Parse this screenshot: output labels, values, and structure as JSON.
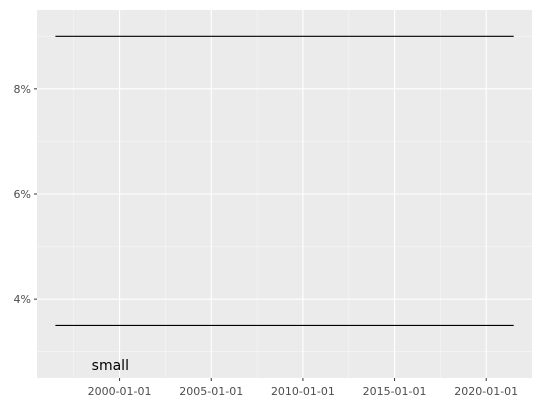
{
  "chart_data": {
    "type": "line",
    "x_type": "date",
    "xlim": [
      "1995-07-01",
      "2022-07-01"
    ],
    "ylim": [
      2.5,
      9.5
    ],
    "x_ticks": [
      "2000-01-01",
      "2005-01-01",
      "2010-01-01",
      "2015-01-01",
      "2020-01-01"
    ],
    "y_ticks": [
      4,
      6,
      8
    ],
    "y_tick_labels": [
      "4%",
      "6%",
      "8%"
    ],
    "grid": true,
    "series": [
      {
        "x": [
          "1996-07-01",
          "2021-07-01"
        ],
        "y": [
          9.0,
          9.0
        ],
        "color": "#000000"
      },
      {
        "x": [
          "1996-07-01",
          "2021-07-01"
        ],
        "y": [
          3.5,
          3.5
        ],
        "color": "#000000"
      }
    ],
    "annotations": [
      {
        "text": "small",
        "x": "1999-07-01",
        "y": 2.75
      }
    ],
    "colors": {
      "panel": "#ebebeb",
      "grid_major": "#ffffff",
      "line": "#000000",
      "tick_text": "#4d4d4d",
      "tick_mark": "#333333"
    }
  }
}
